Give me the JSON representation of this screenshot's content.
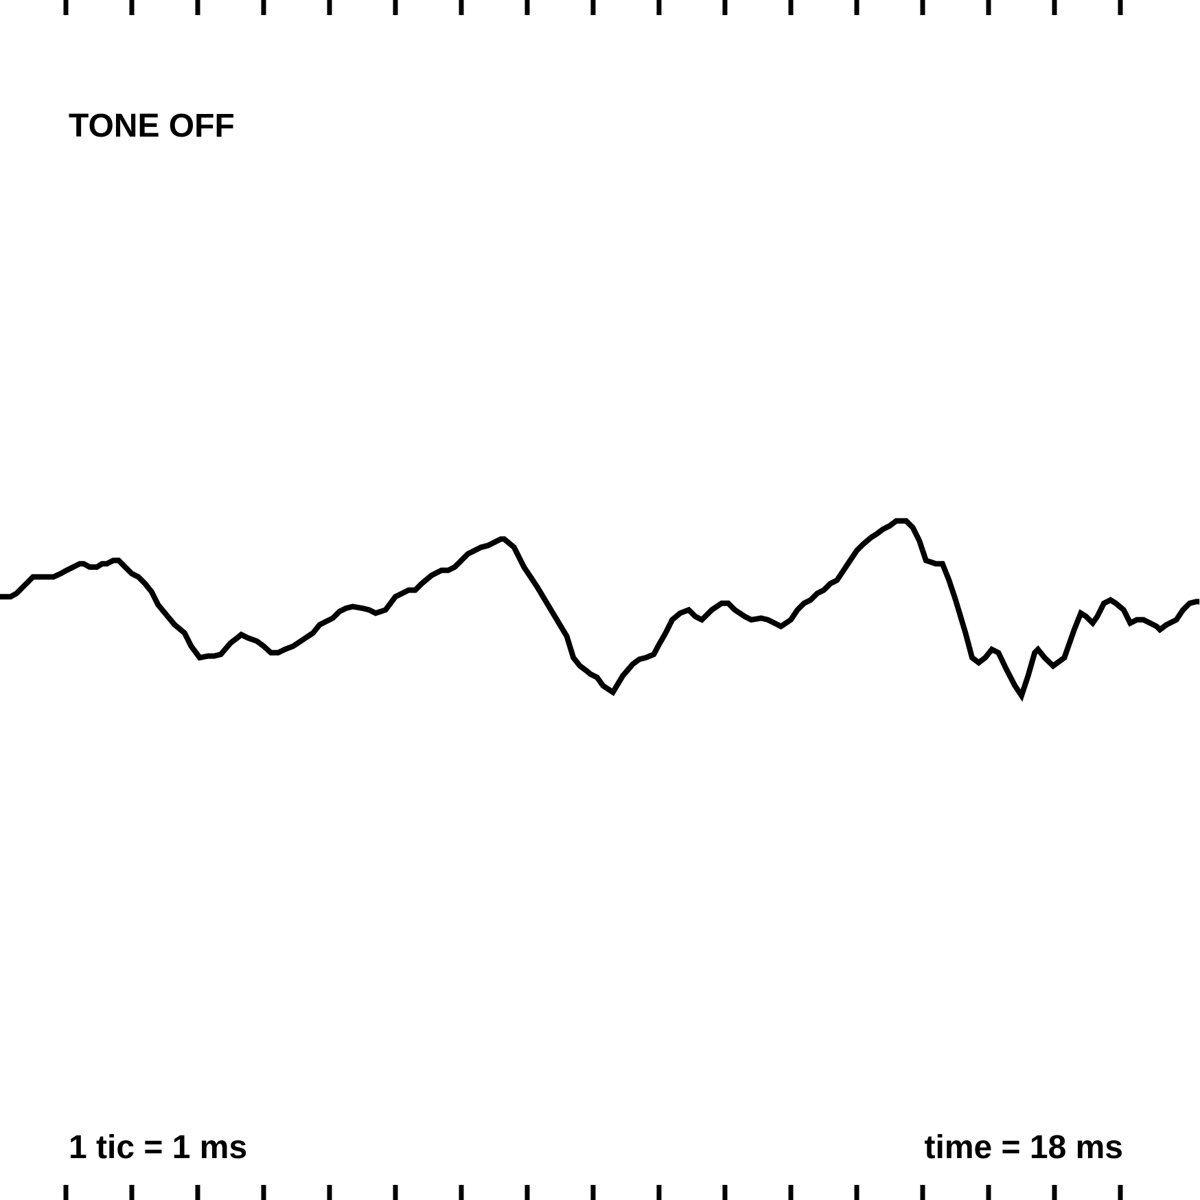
{
  "status": {
    "state": "TONE OFF"
  },
  "footer": {
    "scale": "1 tic = 1 ms",
    "time": "time = 18 ms"
  },
  "colors": {
    "background": "#ffffff",
    "trace": "#000000",
    "ticks": "#000000"
  },
  "chart_data": {
    "type": "line",
    "title": "",
    "xlabel": "",
    "ylabel": "",
    "xlim": [
      0,
      18.2
    ],
    "ylim": [
      -1,
      1
    ],
    "x_tick_values": [
      1,
      2,
      3,
      4,
      5,
      6,
      7,
      8,
      9,
      10,
      11,
      12,
      13,
      14,
      15,
      16,
      17
    ],
    "grid": false,
    "legend": "none",
    "series": [
      {
        "x": [
          0.0,
          0.16,
          0.25,
          0.35,
          0.45,
          0.5,
          0.81,
          0.92,
          1.01,
          1.11,
          1.21,
          1.27,
          1.36,
          1.47,
          1.55,
          1.62,
          1.72,
          1.8,
          1.9,
          2.0,
          2.1,
          2.2,
          2.3,
          2.4,
          2.65,
          2.8,
          2.9,
          3.03,
          3.16,
          3.25,
          3.35,
          3.5,
          3.6,
          3.66,
          3.76,
          3.9,
          4.0,
          4.11,
          4.22,
          4.32,
          4.45,
          4.6,
          4.75,
          4.85,
          4.95,
          5.05,
          5.15,
          5.25,
          5.35,
          5.5,
          5.6,
          5.7,
          5.85,
          6.0,
          6.1,
          6.2,
          6.3,
          6.4,
          6.55,
          6.7,
          6.8,
          6.9,
          7.0,
          7.1,
          7.2,
          7.3,
          7.4,
          7.5,
          7.6,
          7.65,
          7.8,
          7.95,
          8.15,
          8.3,
          8.45,
          8.6,
          8.7,
          8.8,
          8.9,
          8.96,
          9.06,
          9.15,
          9.3,
          9.45,
          9.6,
          9.7,
          9.8,
          9.92,
          10.0,
          10.1,
          10.2,
          10.32,
          10.45,
          10.55,
          10.65,
          10.8,
          10.95,
          11.05,
          11.15,
          11.3,
          11.4,
          11.55,
          11.65,
          11.75,
          11.85,
          12.0,
          12.1,
          12.2,
          12.3,
          12.4,
          12.5,
          12.6,
          12.7,
          12.8,
          12.9,
          13.0,
          13.1,
          13.22,
          13.3,
          13.4,
          13.5,
          13.6,
          13.75,
          13.85,
          13.95,
          14.05,
          14.2,
          14.3,
          14.4,
          14.5,
          14.65,
          14.75,
          14.85,
          14.95,
          15.05,
          15.15,
          15.27,
          15.4,
          15.5,
          15.6,
          15.7,
          15.75,
          15.85,
          15.98,
          16.15,
          16.3,
          16.4,
          16.48,
          16.58,
          16.65,
          16.75,
          16.85,
          16.93,
          17.05,
          17.15,
          17.25,
          17.35,
          17.45,
          17.55,
          17.6,
          17.7,
          17.85,
          17.95,
          18.05,
          18.15,
          18.2
        ],
        "y": [
          0.02,
          0.02,
          0.04,
          0.08,
          0.12,
          0.14,
          0.14,
          0.16,
          0.18,
          0.2,
          0.22,
          0.22,
          0.2,
          0.2,
          0.22,
          0.22,
          0.24,
          0.24,
          0.2,
          0.16,
          0.14,
          0.1,
          0.05,
          -0.03,
          -0.15,
          -0.2,
          -0.28,
          -0.35,
          -0.34,
          -0.34,
          -0.33,
          -0.26,
          -0.23,
          -0.21,
          -0.23,
          -0.25,
          -0.28,
          -0.32,
          -0.32,
          -0.3,
          -0.28,
          -0.24,
          -0.2,
          -0.15,
          -0.13,
          -0.11,
          -0.07,
          -0.05,
          -0.04,
          -0.05,
          -0.06,
          -0.08,
          -0.06,
          0.02,
          0.04,
          0.06,
          0.06,
          0.1,
          0.15,
          0.18,
          0.18,
          0.2,
          0.24,
          0.28,
          0.3,
          0.32,
          0.33,
          0.35,
          0.37,
          0.37,
          0.32,
          0.2,
          0.08,
          -0.02,
          -0.12,
          -0.22,
          -0.35,
          -0.4,
          -0.43,
          -0.45,
          -0.47,
          -0.52,
          -0.56,
          -0.46,
          -0.39,
          -0.36,
          -0.35,
          -0.33,
          -0.27,
          -0.2,
          -0.12,
          -0.08,
          -0.06,
          -0.1,
          -0.12,
          -0.06,
          -0.02,
          -0.02,
          -0.06,
          -0.1,
          -0.12,
          -0.11,
          -0.12,
          -0.14,
          -0.16,
          -0.12,
          -0.06,
          -0.02,
          0.0,
          0.04,
          0.06,
          0.1,
          0.12,
          0.18,
          0.24,
          0.3,
          0.34,
          0.38,
          0.4,
          0.43,
          0.45,
          0.48,
          0.48,
          0.44,
          0.36,
          0.24,
          0.22,
          0.22,
          0.12,
          0.0,
          -0.2,
          -0.35,
          -0.38,
          -0.35,
          -0.3,
          -0.32,
          -0.42,
          -0.52,
          -0.58,
          -0.46,
          -0.32,
          -0.3,
          -0.35,
          -0.4,
          -0.35,
          -0.18,
          -0.08,
          -0.1,
          -0.14,
          -0.1,
          -0.02,
          0.0,
          -0.02,
          -0.06,
          -0.14,
          -0.12,
          -0.12,
          -0.14,
          -0.16,
          -0.18,
          -0.15,
          -0.12,
          -0.06,
          -0.02,
          -0.01,
          -0.01
        ]
      }
    ]
  }
}
